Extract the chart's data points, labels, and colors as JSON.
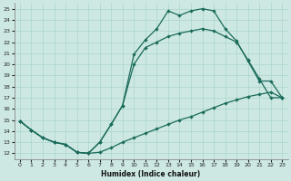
{
  "xlabel": "Humidex (Indice chaleur)",
  "xlim": [
    -0.5,
    23.5
  ],
  "ylim": [
    11.5,
    25.5
  ],
  "xticks": [
    0,
    1,
    2,
    3,
    4,
    5,
    6,
    7,
    8,
    9,
    10,
    11,
    12,
    13,
    14,
    15,
    16,
    17,
    18,
    19,
    20,
    21,
    22,
    23
  ],
  "yticks": [
    12,
    13,
    14,
    15,
    16,
    17,
    18,
    19,
    20,
    21,
    22,
    23,
    24,
    25
  ],
  "bg_color": "#cde8e3",
  "grid_color": "#aad4cc",
  "line_color": "#1a6b5a",
  "line1_x": [
    0,
    1,
    2,
    3,
    4,
    5,
    6,
    7,
    8,
    9,
    10,
    11,
    12,
    13,
    14,
    15,
    16,
    17,
    18,
    19,
    20,
    21,
    22,
    23
  ],
  "line1_y": [
    14.9,
    14.1,
    13.4,
    13.0,
    12.8,
    12.1,
    12.0,
    12.1,
    12.5,
    13.0,
    13.4,
    13.8,
    14.2,
    14.6,
    15.0,
    15.3,
    15.7,
    16.1,
    16.5,
    16.8,
    17.1,
    17.3,
    17.5,
    17.0
  ],
  "line2_x": [
    0,
    1,
    2,
    3,
    4,
    5,
    6,
    7,
    8,
    9,
    10,
    11,
    12,
    13,
    14,
    15,
    16,
    17,
    18,
    19,
    20,
    21,
    22,
    23
  ],
  "line2_y": [
    14.9,
    14.1,
    13.4,
    13.0,
    12.8,
    12.1,
    12.0,
    13.0,
    14.6,
    16.3,
    20.9,
    22.2,
    23.2,
    24.8,
    24.4,
    24.8,
    25.0,
    24.8,
    23.2,
    22.1,
    20.3,
    18.5,
    18.5,
    17.0
  ],
  "line3_x": [
    0,
    1,
    2,
    3,
    4,
    5,
    6,
    7,
    8,
    9,
    10,
    11,
    12,
    13,
    14,
    15,
    16,
    17,
    18,
    19,
    20,
    21,
    22,
    23
  ],
  "line3_y": [
    14.9,
    14.1,
    13.4,
    13.0,
    12.8,
    12.1,
    12.0,
    13.0,
    14.6,
    16.3,
    20.0,
    21.5,
    22.0,
    22.5,
    22.8,
    23.0,
    23.2,
    23.0,
    22.5,
    22.0,
    20.4,
    18.7,
    17.0,
    17.0
  ]
}
